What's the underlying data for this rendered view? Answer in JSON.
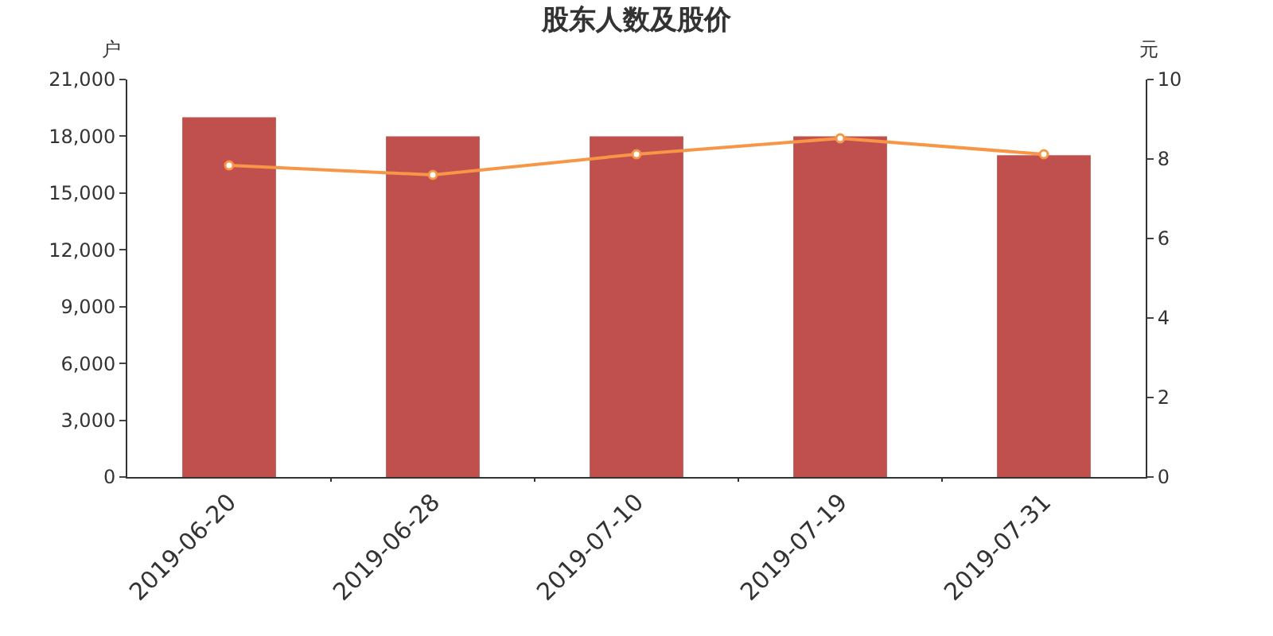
{
  "chart_data": {
    "type": "bar",
    "title": "股东人数及股价",
    "ylabel": "户",
    "y2label": "元",
    "categories": [
      "2019-06-20",
      "2019-06-28",
      "2019-07-10",
      "2019-07-19",
      "2019-07-31"
    ],
    "series": [
      {
        "color": "#c0504d",
        "values": [
          19000,
          18000,
          18000,
          18000,
          17000
        ]
      },
      {
        "type": "line",
        "axis": "y2",
        "color": "#f79646",
        "marker": "circle",
        "values": [
          7.84,
          7.6,
          8.12,
          8.52,
          8.12
        ]
      }
    ],
    "ylim": [
      0,
      21000
    ],
    "yticks": [
      {
        "value": 0,
        "label": "0"
      },
      {
        "value": 3000,
        "label": "3,000"
      },
      {
        "value": 6000,
        "label": "6,000"
      },
      {
        "value": 9000,
        "label": "9,000"
      },
      {
        "value": 12000,
        "label": "12,000"
      },
      {
        "value": 15000,
        "label": "15,000"
      },
      {
        "value": 18000,
        "label": "18,000"
      },
      {
        "value": 21000,
        "label": "21,000"
      }
    ],
    "y2lim": [
      0,
      10
    ],
    "y2ticks": [
      0,
      2,
      4,
      6,
      8,
      10
    ],
    "grid": false
  }
}
